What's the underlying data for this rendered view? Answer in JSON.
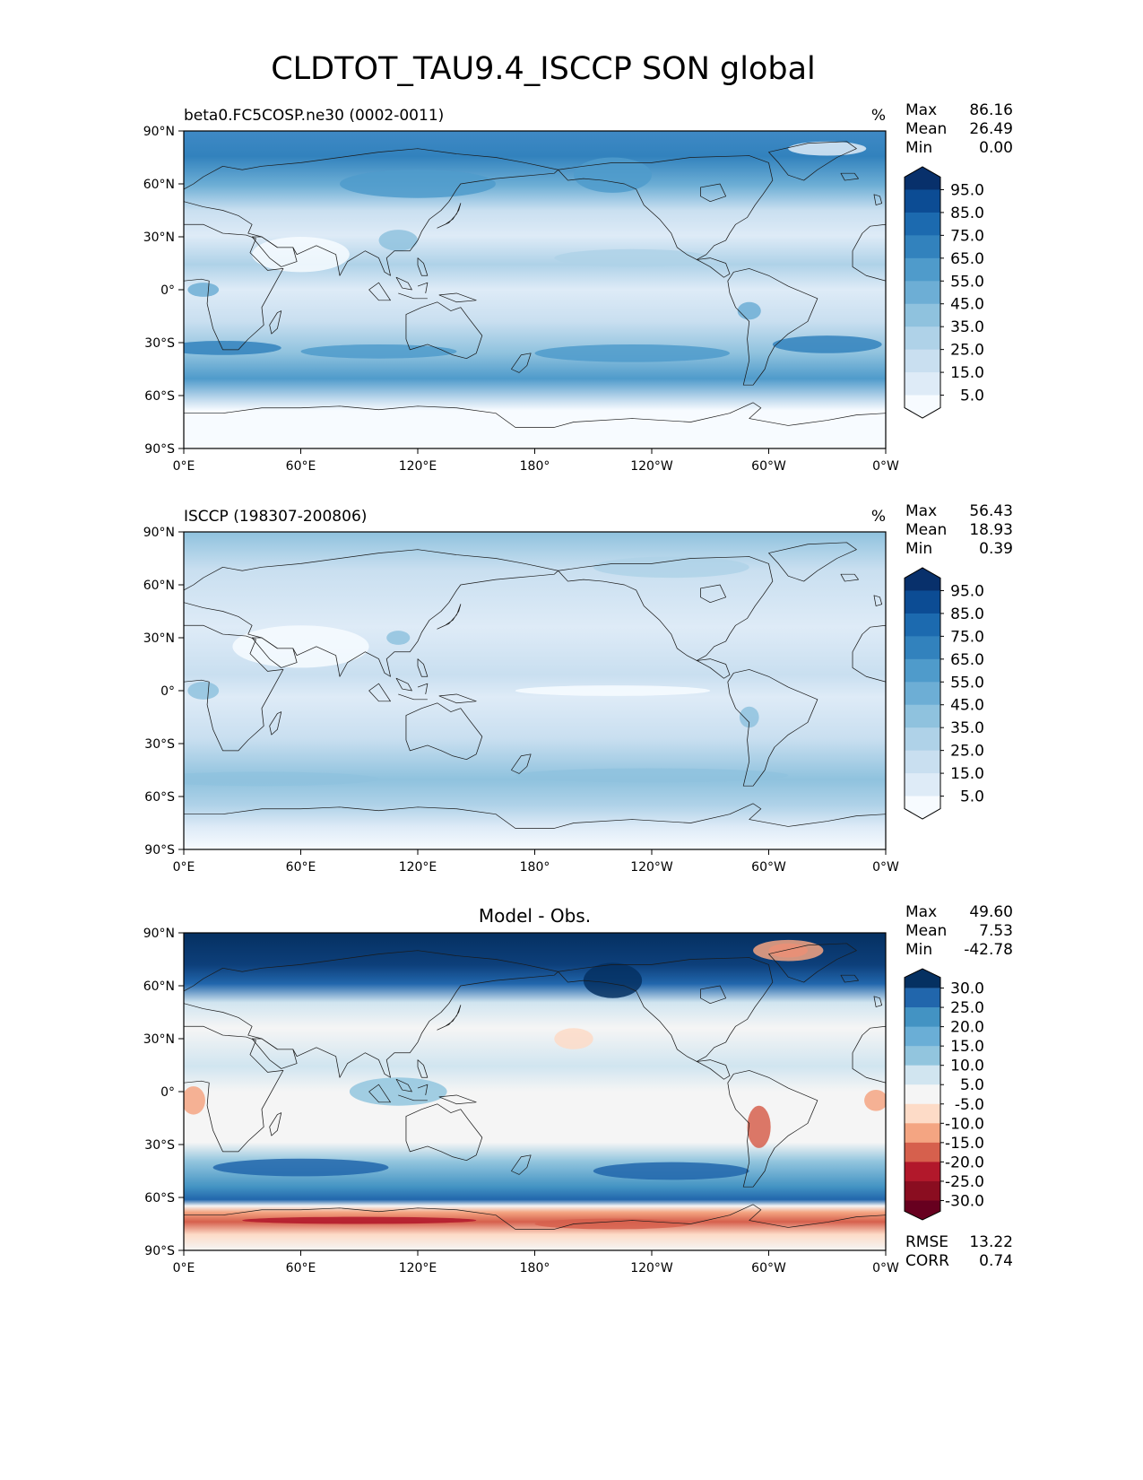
{
  "title": "CLDTOT_TAU9.4_ISCCP SON global",
  "chart_data": [
    {
      "type": "heatmap",
      "panel": "test",
      "title": "beta0.FC5COSP.ne30 (0002-0011)",
      "units": "%",
      "stats": [
        {
          "label": "Max",
          "value": "86.16"
        },
        {
          "label": "Mean",
          "value": "26.49"
        },
        {
          "label": "Min",
          "value": "0.00"
        }
      ],
      "x_ticks": [
        "0°E",
        "60°E",
        "120°E",
        "180°",
        "120°W",
        "60°W",
        "0°W"
      ],
      "y_ticks": [
        "90°N",
        "60°N",
        "30°N",
        "0°",
        "30°S",
        "60°S",
        "90°S"
      ],
      "colorbar": {
        "labels": [
          "95.0",
          "85.0",
          "75.0",
          "65.0",
          "55.0",
          "45.0",
          "35.0",
          "25.0",
          "15.0",
          "5.0"
        ],
        "colors": [
          "#08306b",
          "#0c4c94",
          "#1c6aaf",
          "#3282bd",
          "#4f9bcb",
          "#6daed5",
          "#8fc2de",
          "#afd2e8",
          "#c9dff0",
          "#deebf7",
          "#f7fbff"
        ]
      },
      "xlim": [
        0,
        360
      ],
      "ylim": [
        -90,
        90
      ]
    },
    {
      "type": "heatmap",
      "panel": "reference",
      "title": "ISCCP (198307-200806)",
      "units": "%",
      "stats": [
        {
          "label": "Max",
          "value": "56.43"
        },
        {
          "label": "Mean",
          "value": "18.93"
        },
        {
          "label": "Min",
          "value": "0.39"
        }
      ],
      "x_ticks": [
        "0°E",
        "60°E",
        "120°E",
        "180°",
        "120°W",
        "60°W",
        "0°W"
      ],
      "y_ticks": [
        "90°N",
        "60°N",
        "30°N",
        "0°",
        "30°S",
        "60°S",
        "90°S"
      ],
      "colorbar": {
        "labels": [
          "95.0",
          "85.0",
          "75.0",
          "65.0",
          "55.0",
          "45.0",
          "35.0",
          "25.0",
          "15.0",
          "5.0"
        ],
        "colors": [
          "#08306b",
          "#0c4c94",
          "#1c6aaf",
          "#3282bd",
          "#4f9bcb",
          "#6daed5",
          "#8fc2de",
          "#afd2e8",
          "#c9dff0",
          "#deebf7",
          "#f7fbff"
        ]
      },
      "xlim": [
        0,
        360
      ],
      "ylim": [
        -90,
        90
      ]
    },
    {
      "type": "heatmap",
      "panel": "difference",
      "title": "Model - Obs.",
      "stats": [
        {
          "label": "Max",
          "value": "49.60"
        },
        {
          "label": "Mean",
          "value": "7.53"
        },
        {
          "label": "Min",
          "value": "-42.78"
        }
      ],
      "metrics": [
        {
          "label": "RMSE",
          "value": "13.22"
        },
        {
          "label": "CORR",
          "value": "0.74"
        }
      ],
      "x_ticks": [
        "0°E",
        "60°E",
        "120°E",
        "180°",
        "120°W",
        "60°W",
        "0°W"
      ],
      "y_ticks": [
        "90°N",
        "60°N",
        "30°N",
        "0°",
        "30°S",
        "60°S",
        "90°S"
      ],
      "colorbar": {
        "labels": [
          "30.0",
          "25.0",
          "20.0",
          "15.0",
          "10.0",
          "5.0",
          "-5.0",
          "-10.0",
          "-15.0",
          "-20.0",
          "-25.0",
          "-30.0"
        ],
        "colors": [
          "#053061",
          "#2166ac",
          "#4393c3",
          "#6aaed6",
          "#92c5de",
          "#d1e5f0",
          "#f5f5f5",
          "#fddbc7",
          "#f4a582",
          "#d6604d",
          "#b2182b",
          "#8a0d20",
          "#67001f"
        ]
      },
      "xlim": [
        0,
        360
      ],
      "ylim": [
        -90,
        90
      ]
    }
  ]
}
